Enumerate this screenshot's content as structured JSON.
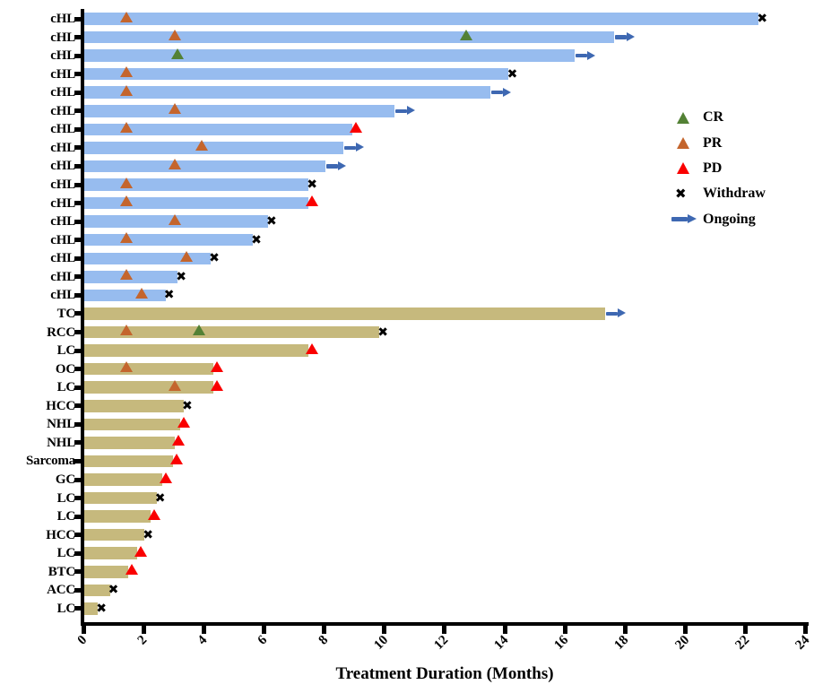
{
  "chart_data": {
    "type": "bar",
    "subtype": "swimmer-plot",
    "orientation": "horizontal",
    "xlabel": "Treatment Duration (Months)",
    "xlim": [
      0,
      24
    ],
    "xticks": [
      0,
      2,
      4,
      6,
      8,
      10,
      12,
      14,
      16,
      18,
      20,
      22,
      24
    ],
    "grid": false,
    "legend_position": "right-upper",
    "colors": {
      "chl_bar": "#97BCEF",
      "other_bar": "#C6B97D",
      "cr": "#538135",
      "pr": "#C4652D",
      "pd": "#FA0000",
      "withdraw": "#000000",
      "ongoing": "#3E68B2",
      "axis": "#000000"
    },
    "legend": [
      {
        "key": "cr",
        "label": "CR",
        "symbol": "triangle"
      },
      {
        "key": "pr",
        "label": "PR",
        "symbol": "triangle"
      },
      {
        "key": "pd",
        "label": "PD",
        "symbol": "triangle"
      },
      {
        "key": "withdraw",
        "label": "Withdraw",
        "symbol": "x"
      },
      {
        "key": "ongoing",
        "label": "Ongoing",
        "symbol": "arrow"
      }
    ],
    "patients": [
      {
        "label": "cHL",
        "group": "cHL",
        "duration": 22.4,
        "end": "Withdraw",
        "markers": [
          {
            "type": "PR",
            "month": 1.4
          }
        ]
      },
      {
        "label": "cHL",
        "group": "cHL",
        "duration": 17.6,
        "end": "Ongoing",
        "markers": [
          {
            "type": "PR",
            "month": 3.0
          },
          {
            "type": "CR",
            "month": 12.7
          }
        ]
      },
      {
        "label": "cHL",
        "group": "cHL",
        "duration": 16.3,
        "end": "Ongoing",
        "markers": [
          {
            "type": "CR",
            "month": 3.1
          }
        ]
      },
      {
        "label": "cHL",
        "group": "cHL",
        "duration": 14.1,
        "end": "Withdraw",
        "markers": [
          {
            "type": "PR",
            "month": 1.4
          }
        ]
      },
      {
        "label": "cHL",
        "group": "cHL",
        "duration": 13.5,
        "end": "Ongoing",
        "markers": [
          {
            "type": "PR",
            "month": 1.4
          }
        ]
      },
      {
        "label": "cHL",
        "group": "cHL",
        "duration": 10.3,
        "end": "Ongoing",
        "markers": [
          {
            "type": "PR",
            "month": 3.0
          }
        ]
      },
      {
        "label": "cHL",
        "group": "cHL",
        "duration": 8.9,
        "end": "PD",
        "markers": [
          {
            "type": "PR",
            "month": 1.4
          }
        ]
      },
      {
        "label": "cHL",
        "group": "cHL",
        "duration": 8.6,
        "end": "Ongoing",
        "markers": [
          {
            "type": "PR",
            "month": 3.9
          }
        ]
      },
      {
        "label": "cHL",
        "group": "cHL",
        "duration": 8.0,
        "end": "Ongoing",
        "markers": [
          {
            "type": "PR",
            "month": 3.0
          }
        ]
      },
      {
        "label": "cHL",
        "group": "cHL",
        "duration": 7.45,
        "end": "Withdraw",
        "markers": [
          {
            "type": "PR",
            "month": 1.4
          }
        ]
      },
      {
        "label": "cHL",
        "group": "cHL",
        "duration": 7.45,
        "end": "PD",
        "markers": [
          {
            "type": "PR",
            "month": 1.4
          }
        ]
      },
      {
        "label": "cHL",
        "group": "cHL",
        "duration": 6.1,
        "end": "Withdraw",
        "markers": [
          {
            "type": "PR",
            "month": 3.0
          }
        ]
      },
      {
        "label": "cHL",
        "group": "cHL",
        "duration": 5.6,
        "end": "Withdraw",
        "markers": [
          {
            "type": "PR",
            "month": 1.4
          }
        ]
      },
      {
        "label": "cHL",
        "group": "cHL",
        "duration": 4.2,
        "end": "Withdraw",
        "markers": [
          {
            "type": "PR",
            "month": 3.4
          }
        ]
      },
      {
        "label": "cHL",
        "group": "cHL",
        "duration": 3.1,
        "end": "Withdraw",
        "markers": [
          {
            "type": "PR",
            "month": 1.4
          }
        ]
      },
      {
        "label": "cHL",
        "group": "cHL",
        "duration": 2.7,
        "end": "Withdraw",
        "markers": [
          {
            "type": "PR",
            "month": 1.9
          }
        ]
      },
      {
        "label": "TC",
        "group": "other",
        "duration": 17.3,
        "end": "Ongoing",
        "markers": []
      },
      {
        "label": "RCC",
        "group": "other",
        "duration": 9.8,
        "end": "Withdraw",
        "markers": [
          {
            "type": "PR",
            "month": 1.4
          },
          {
            "type": "CR",
            "month": 3.8
          }
        ]
      },
      {
        "label": "LC",
        "group": "other",
        "duration": 7.45,
        "end": "PD",
        "markers": []
      },
      {
        "label": "OC",
        "group": "other",
        "duration": 4.3,
        "end": "PD",
        "markers": [
          {
            "type": "PR",
            "month": 1.4
          }
        ]
      },
      {
        "label": "LC",
        "group": "other",
        "duration": 4.3,
        "end": "PD",
        "markers": [
          {
            "type": "PR",
            "month": 3.0
          }
        ]
      },
      {
        "label": "HCC",
        "group": "other",
        "duration": 3.3,
        "end": "Withdraw",
        "markers": []
      },
      {
        "label": "NHL",
        "group": "other",
        "duration": 3.2,
        "end": "PD",
        "markers": []
      },
      {
        "label": "NHL",
        "group": "other",
        "duration": 3.0,
        "end": "PD",
        "markers": []
      },
      {
        "label": "Sarcoma",
        "group": "other",
        "duration": 2.95,
        "end": "PD",
        "markers": []
      },
      {
        "label": "GC",
        "group": "other",
        "duration": 2.6,
        "end": "PD",
        "markers": []
      },
      {
        "label": "LC",
        "group": "other",
        "duration": 2.4,
        "end": "Withdraw",
        "markers": []
      },
      {
        "label": "LC",
        "group": "other",
        "duration": 2.2,
        "end": "PD",
        "markers": []
      },
      {
        "label": "HCC",
        "group": "other",
        "duration": 2.0,
        "end": "Withdraw",
        "markers": []
      },
      {
        "label": "LC",
        "group": "other",
        "duration": 1.75,
        "end": "PD",
        "markers": []
      },
      {
        "label": "BTC",
        "group": "other",
        "duration": 1.45,
        "end": "PD",
        "markers": []
      },
      {
        "label": "ACC",
        "group": "other",
        "duration": 0.85,
        "end": "Withdraw",
        "markers": []
      },
      {
        "label": "LC",
        "group": "other",
        "duration": 0.45,
        "end": "Withdraw",
        "markers": []
      }
    ]
  }
}
